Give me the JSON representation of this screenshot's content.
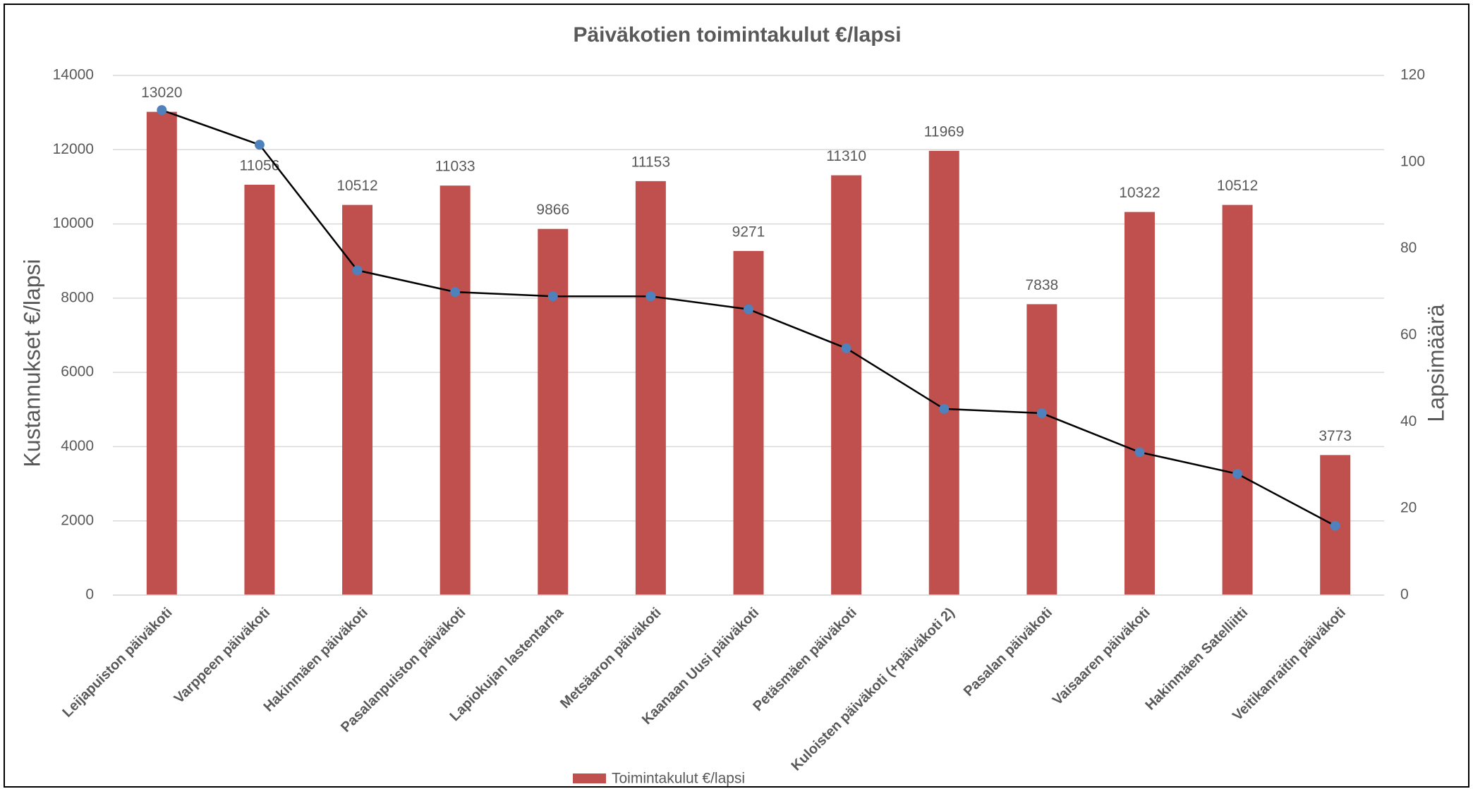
{
  "chart_data": {
    "type": "bar",
    "title": "Päiväkotien toimintakulut €/lapsi",
    "ylabel": "Kustannukset  €/lapsi",
    "y2label": "Lapsimäärä",
    "categories": [
      "Leijapuiston päiväkoti",
      "Varppeen päiväkoti",
      "Hakinmäen päiväkoti",
      "Pasalanpuiston päiväkoti",
      "Lapiokujan lastentarha",
      "Metsäaron päiväkoti",
      "Kaanaan Uusi päiväkoti",
      "Petäsmäen päiväkoti",
      "Kuloisten päiväkoti (+päiväkoti 2)",
      "Pasalan päiväkoti",
      "Vaisaaren päiväkoti",
      "Hakinmäen Satelliitti",
      "Veitikanraitin päiväkoti"
    ],
    "series": [
      {
        "name": "Toimintakulut €/lapsi",
        "type": "bar",
        "color": "#c0504d",
        "values": [
          13020,
          11056,
          10512,
          11033,
          9866,
          11153,
          9271,
          11310,
          11969,
          7838,
          10322,
          10512,
          3773
        ]
      },
      {
        "type": "line",
        "axis": "y2",
        "color": "#000000",
        "marker_color": "#4f81bd",
        "values": [
          112,
          104,
          75,
          70,
          69,
          69,
          66,
          57,
          43,
          42,
          33,
          28,
          16
        ]
      }
    ],
    "ylim": [
      0,
      14000
    ],
    "yticks": [
      0,
      2000,
      4000,
      6000,
      8000,
      10000,
      12000,
      14000
    ],
    "y2lim": [
      0,
      120
    ],
    "y2ticks": [
      0,
      20,
      40,
      60,
      80,
      100,
      120
    ],
    "grid": true,
    "legend": "bottom"
  }
}
